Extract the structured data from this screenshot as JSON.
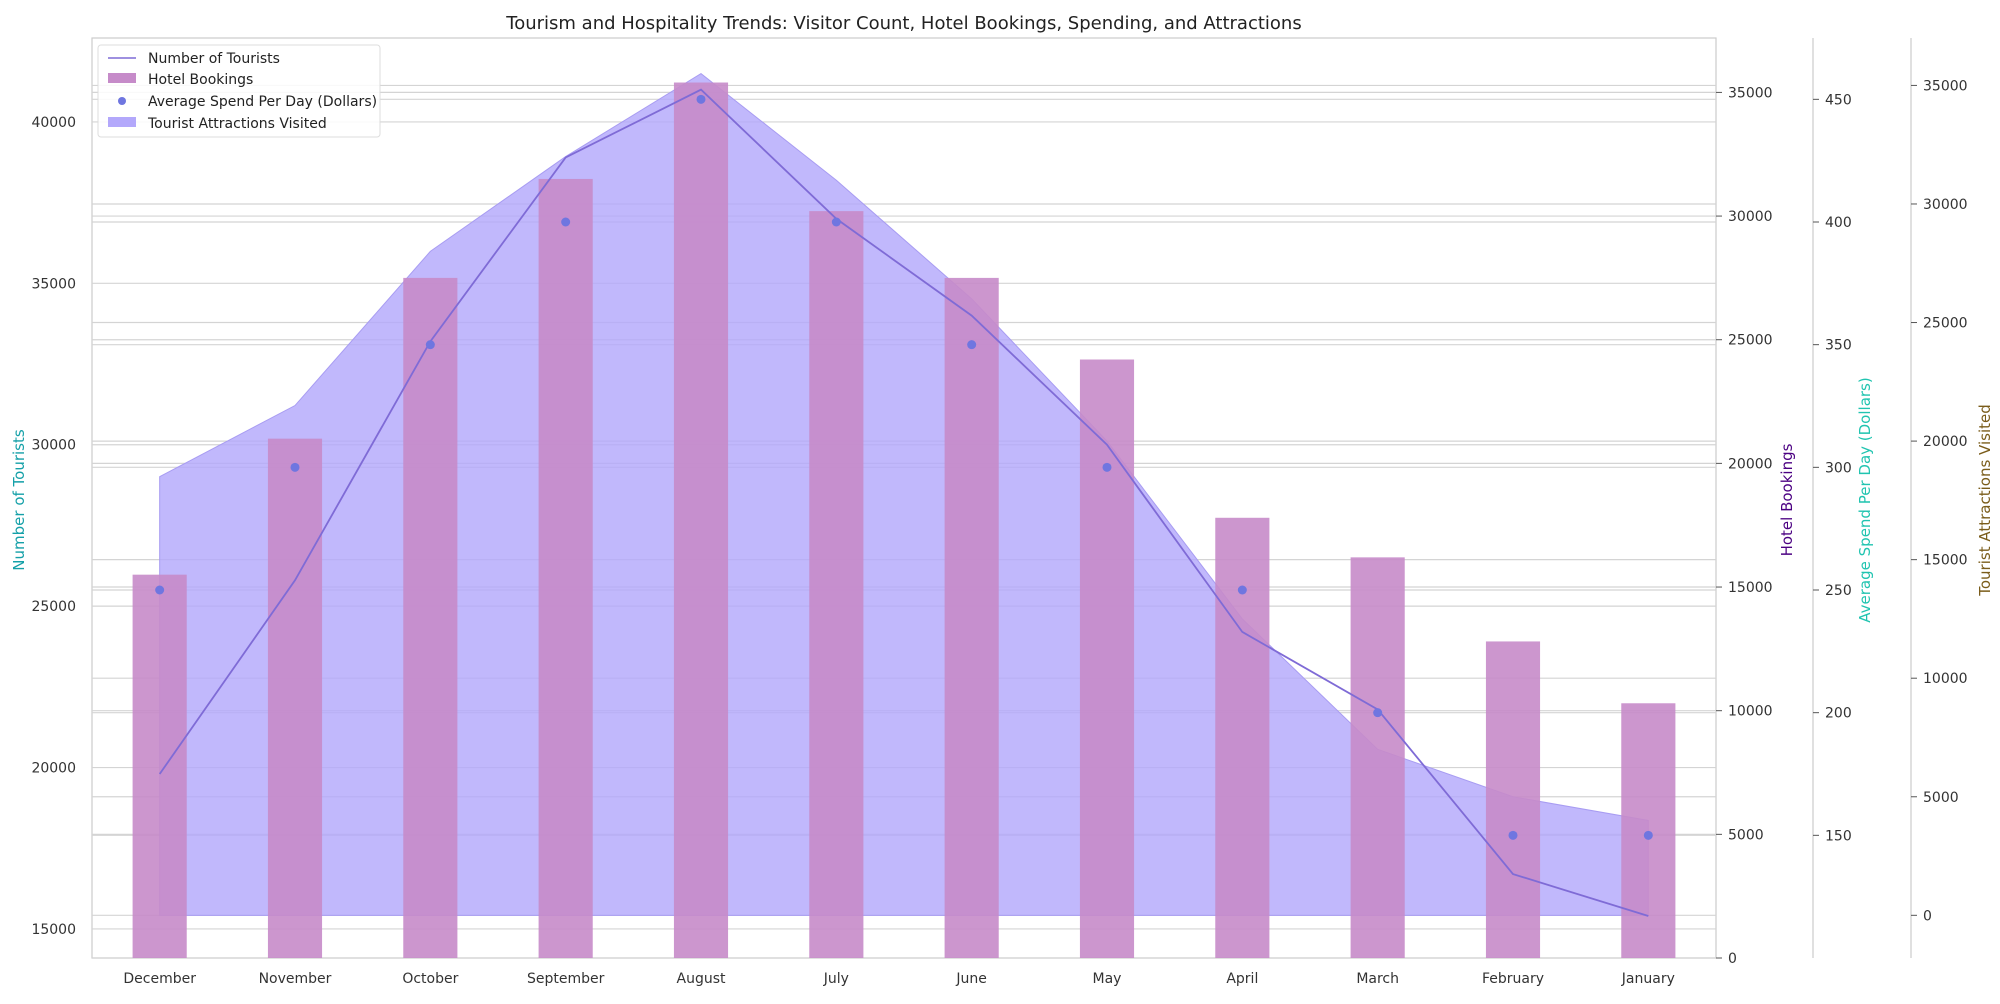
{
  "chart_data": {
    "type": "bar",
    "title": "Tourism and Hospitality Trends: Visitor Count, Hotel Bookings, Spending, and Attractions",
    "categories": [
      "December",
      "November",
      "October",
      "September",
      "August",
      "July",
      "June",
      "May",
      "April",
      "March",
      "February",
      "January"
    ],
    "series": [
      {
        "name": "Number of Tourists",
        "type": "line",
        "axis": "left",
        "color": "#7f6bd6",
        "values": [
          19800,
          25800,
          33200,
          38900,
          41000,
          37000,
          34000,
          30000,
          24200,
          21800,
          16700,
          15400
        ]
      },
      {
        "name": "Hotel Bookings",
        "type": "bar",
        "axis": "right1",
        "color": "#c68bc9",
        "values": [
          15500,
          21000,
          27500,
          31500,
          35400,
          30200,
          27500,
          24200,
          17800,
          16200,
          12800,
          10300
        ]
      },
      {
        "name": "Average Spend Per Day (Dollars)",
        "type": "scatter",
        "axis": "right2",
        "color": "#6f76e0",
        "values": [
          250,
          300,
          350,
          400,
          450,
          400,
          350,
          300,
          250,
          200,
          150,
          150
        ]
      },
      {
        "name": "Tourist Attractions Visited",
        "type": "area",
        "axis": "right3",
        "color": "#b3a8fb",
        "values": [
          18500,
          21500,
          28000,
          32000,
          35500,
          31000,
          26000,
          20000,
          12500,
          7000,
          5000,
          4000
        ]
      }
    ],
    "axes": {
      "left": {
        "label": "Number of Tourists",
        "color": "#14a0a8",
        "ylim": [
          14100,
          42600
        ],
        "ticks": [
          15000,
          20000,
          25000,
          30000,
          35000,
          40000
        ]
      },
      "right1": {
        "label": "Hotel Bookings",
        "color": "#4b0082",
        "ylim": [
          0,
          37200
        ],
        "ticks": [
          0,
          5000,
          10000,
          15000,
          20000,
          25000,
          30000,
          35000
        ]
      },
      "right2": {
        "label": "Average Spend Per Day (Dollars)",
        "color": "#20c4b0",
        "ylim": [
          100,
          475
        ],
        "ticks": [
          150,
          200,
          250,
          300,
          350,
          400,
          450
        ]
      },
      "right3": {
        "label": "Tourist Attractions Visited",
        "color": "#7a5c1a",
        "ylim": [
          -1800,
          37000
        ],
        "ticks": [
          0,
          5000,
          10000,
          15000,
          20000,
          25000,
          30000,
          35000
        ]
      }
    },
    "grid": true,
    "legend_position": "top-left"
  }
}
